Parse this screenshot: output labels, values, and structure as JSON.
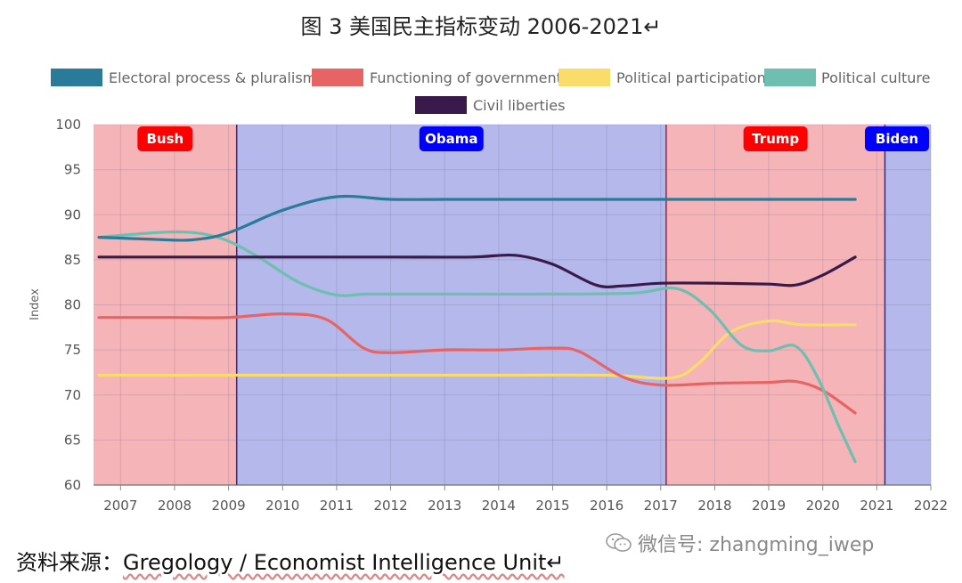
{
  "figure_title": "图 3 美国民主指标变动 2006-2021↵",
  "source": {
    "label": "资料来源：",
    "text": "Gregology / Economist Intelligence Unit↵"
  },
  "watermark": {
    "icon": "wechat-icon",
    "text": "微信号: zhangming_iwep"
  },
  "chart_data": {
    "type": "line",
    "ylabel": "Index",
    "ylim": [
      60,
      100
    ],
    "yticks": [
      60,
      65,
      70,
      75,
      80,
      85,
      90,
      95,
      100
    ],
    "xlim": [
      2006.5,
      2022
    ],
    "xticks": [
      2007,
      2008,
      2009,
      2010,
      2011,
      2012,
      2013,
      2014,
      2015,
      2016,
      2017,
      2018,
      2019,
      2020,
      2021,
      2022
    ],
    "grid": true,
    "legend_position": "top",
    "eras": [
      {
        "label": "Bush",
        "start": 2006.5,
        "end": 2009.15,
        "color": "#f4b4b8",
        "badge": "#ff0000"
      },
      {
        "label": "Obama",
        "start": 2009.15,
        "end": 2017.1,
        "color": "#b4b8ea",
        "badge": "#0000ff"
      },
      {
        "label": "Trump",
        "start": 2017.1,
        "end": 2021.15,
        "color": "#f4b4b8",
        "badge": "#ff0000"
      },
      {
        "label": "Biden",
        "start": 2021.15,
        "end": 2022,
        "color": "#b4b8ea",
        "badge": "#0000ff"
      }
    ],
    "series": [
      {
        "name": "Electoral process & pluralism",
        "color": "#2a7a9a",
        "points": [
          [
            2006.6,
            87.5
          ],
          [
            2007.5,
            87.3
          ],
          [
            2008.3,
            87.2
          ],
          [
            2009.0,
            88.0
          ],
          [
            2010.0,
            90.5
          ],
          [
            2011.0,
            92.0
          ],
          [
            2012.0,
            91.7
          ],
          [
            2013.0,
            91.7
          ],
          [
            2014.0,
            91.7
          ],
          [
            2015.0,
            91.7
          ],
          [
            2016.0,
            91.7
          ],
          [
            2017.0,
            91.7
          ],
          [
            2018.0,
            91.7
          ],
          [
            2019.0,
            91.7
          ],
          [
            2020.6,
            91.7
          ]
        ]
      },
      {
        "name": "Functioning of government",
        "color": "#e86464",
        "points": [
          [
            2006.6,
            78.6
          ],
          [
            2008.0,
            78.6
          ],
          [
            2009.0,
            78.6
          ],
          [
            2010.0,
            79.0
          ],
          [
            2010.8,
            78.4
          ],
          [
            2011.5,
            75.2
          ],
          [
            2012.0,
            74.7
          ],
          [
            2013.0,
            75.0
          ],
          [
            2014.0,
            75.0
          ],
          [
            2015.0,
            75.2
          ],
          [
            2015.5,
            74.8
          ],
          [
            2016.3,
            72.0
          ],
          [
            2017.0,
            71.1
          ],
          [
            2018.0,
            71.3
          ],
          [
            2019.0,
            71.4
          ],
          [
            2019.5,
            71.5
          ],
          [
            2020.0,
            70.5
          ],
          [
            2020.6,
            68.0
          ]
        ]
      },
      {
        "name": "Political participation",
        "color": "#fadc6a",
        "points": [
          [
            2006.6,
            72.2
          ],
          [
            2008.0,
            72.2
          ],
          [
            2010.0,
            72.2
          ],
          [
            2012.0,
            72.2
          ],
          [
            2014.0,
            72.2
          ],
          [
            2016.0,
            72.2
          ],
          [
            2017.2,
            71.9
          ],
          [
            2017.7,
            73.5
          ],
          [
            2018.3,
            77.0
          ],
          [
            2019.0,
            78.2
          ],
          [
            2019.6,
            77.8
          ],
          [
            2020.6,
            77.8
          ]
        ]
      },
      {
        "name": "Political culture",
        "color": "#6fbfb0",
        "points": [
          [
            2006.6,
            87.5
          ],
          [
            2008.0,
            88.1
          ],
          [
            2008.8,
            87.5
          ],
          [
            2009.5,
            85.5
          ],
          [
            2010.3,
            82.5
          ],
          [
            2011.0,
            81.1
          ],
          [
            2011.6,
            81.2
          ],
          [
            2013.0,
            81.2
          ],
          [
            2015.0,
            81.2
          ],
          [
            2016.5,
            81.3
          ],
          [
            2017.3,
            81.8
          ],
          [
            2017.9,
            79.5
          ],
          [
            2018.5,
            75.5
          ],
          [
            2019.0,
            74.9
          ],
          [
            2019.5,
            75.4
          ],
          [
            2019.9,
            72.0
          ],
          [
            2020.3,
            66.5
          ],
          [
            2020.6,
            62.6
          ]
        ]
      },
      {
        "name": "Civil liberties",
        "color": "#3a1a4a",
        "points": [
          [
            2006.6,
            85.3
          ],
          [
            2008.0,
            85.3
          ],
          [
            2010.0,
            85.3
          ],
          [
            2012.0,
            85.3
          ],
          [
            2013.5,
            85.3
          ],
          [
            2014.3,
            85.5
          ],
          [
            2015.0,
            84.5
          ],
          [
            2015.8,
            82.2
          ],
          [
            2016.3,
            82.1
          ],
          [
            2017.0,
            82.4
          ],
          [
            2018.0,
            82.4
          ],
          [
            2019.0,
            82.3
          ],
          [
            2019.5,
            82.2
          ],
          [
            2020.0,
            83.3
          ],
          [
            2020.6,
            85.3
          ]
        ]
      }
    ]
  }
}
